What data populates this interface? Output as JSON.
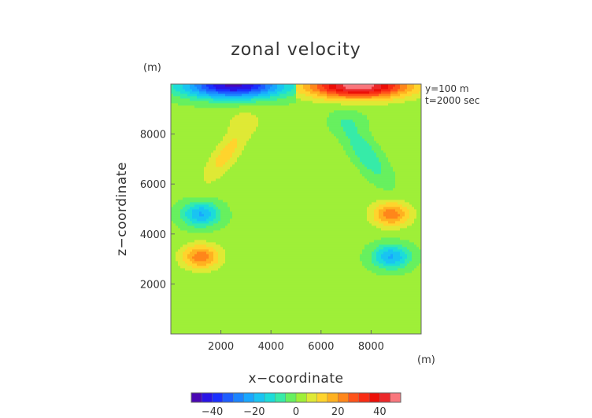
{
  "chart_data": {
    "type": "heatmap",
    "title": "zonal velocity",
    "xlabel": "x−coordinate",
    "ylabel": "z−coordinate",
    "x_unit": "(m)",
    "y_unit": "(m)",
    "annotations": [
      "y=100  m",
      "t=2000 sec"
    ],
    "xlim": [
      0,
      10000
    ],
    "ylim": [
      0,
      10000
    ],
    "x_ticks": [
      2000,
      4000,
      6000,
      8000
    ],
    "y_ticks": [
      2000,
      4000,
      6000,
      8000
    ],
    "x_tick_labels": [
      "2000",
      "4000",
      "6000",
      "8000"
    ],
    "y_tick_labels": [
      "2000",
      "4000",
      "6000",
      "8000"
    ],
    "colorbar": {
      "range": [
        -50,
        50
      ],
      "ticks": [
        -40,
        -20,
        0,
        20,
        40
      ],
      "tick_labels": [
        "−40",
        "−20",
        "0",
        "20",
        "40"
      ],
      "stops": [
        "#5a0099",
        "#1a1aff",
        "#1e73ff",
        "#17b8ff",
        "#1ee8cc",
        "#7ff23a",
        "#ffe633",
        "#ff9f1a",
        "#ff3a1a",
        "#e60000",
        "#ff9fa6"
      ]
    },
    "features": [
      {
        "name": "upper-left jet",
        "x": 2500,
        "z": 9600,
        "value": -48
      },
      {
        "name": "upper-right jet",
        "x": 7500,
        "z": 9600,
        "value": 48
      },
      {
        "name": "left slanted band",
        "x": 2200,
        "z": 7200,
        "value": 12
      },
      {
        "name": "right slanted band",
        "x": 7800,
        "z": 7200,
        "value": -12
      },
      {
        "name": "left mid lobe",
        "x": 1200,
        "z": 4800,
        "value": -22
      },
      {
        "name": "right mid lobe",
        "x": 8800,
        "z": 4800,
        "value": 22
      },
      {
        "name": "left low lobe",
        "x": 1200,
        "z": 3100,
        "value": 22
      },
      {
        "name": "right low lobe",
        "x": 8800,
        "z": 3100,
        "value": -22
      }
    ],
    "grid": false
  }
}
